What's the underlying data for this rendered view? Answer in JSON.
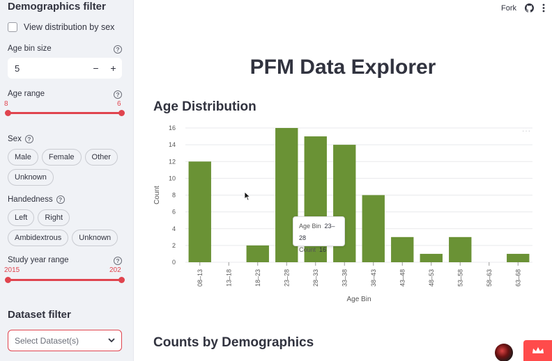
{
  "sidebar": {
    "demographics_heading": "Demographics filter",
    "view_by_sex_label": "View distribution by sex",
    "age_bin": {
      "label": "Age bin size",
      "value": "5",
      "minus": "−",
      "plus": "+"
    },
    "age_range": {
      "label": "Age range",
      "min_label": "8",
      "max_label": "6"
    },
    "sex": {
      "label": "Sex",
      "options": [
        "Male",
        "Female",
        "Other",
        "Unknown"
      ]
    },
    "handedness": {
      "label": "Handedness",
      "options": [
        "Left",
        "Right",
        "Ambidextrous",
        "Unknown"
      ]
    },
    "study_year": {
      "label": "Study year range",
      "min_label": "2015",
      "max_label": "202"
    },
    "dataset_heading": "Dataset filter",
    "dataset_select_placeholder": "Select Dataset(s)"
  },
  "topbar": {
    "fork_label": "Fork",
    "github_icon": "github-icon",
    "menu_icon": "kebab-menu-icon"
  },
  "main": {
    "title": "PFM Data Explorer",
    "age_section_title": "Age Distribution",
    "counts_section_title": "Counts by Demographics"
  },
  "tooltip": {
    "k1": "Age Bin",
    "v1": "23–28",
    "k2": "Count",
    "v2": "16"
  },
  "colors": {
    "accent": "#e0444e",
    "bar": "#6a9235",
    "badge": "#ff4b4b"
  },
  "chart_data": {
    "type": "bar",
    "categories": [
      "08–13",
      "13–18",
      "18–23",
      "23–28",
      "28–33",
      "33–38",
      "38–43",
      "43–48",
      "48–53",
      "53–58",
      "58–63",
      "63–68"
    ],
    "values": [
      12,
      0,
      2,
      16,
      15,
      14,
      8,
      3,
      1,
      3,
      0,
      1
    ],
    "xlabel": "Age Bin",
    "ylabel": "Count",
    "yticks": [
      0,
      2,
      4,
      6,
      8,
      10,
      12,
      14,
      16
    ],
    "ylim": [
      0,
      16
    ],
    "grid": true
  }
}
